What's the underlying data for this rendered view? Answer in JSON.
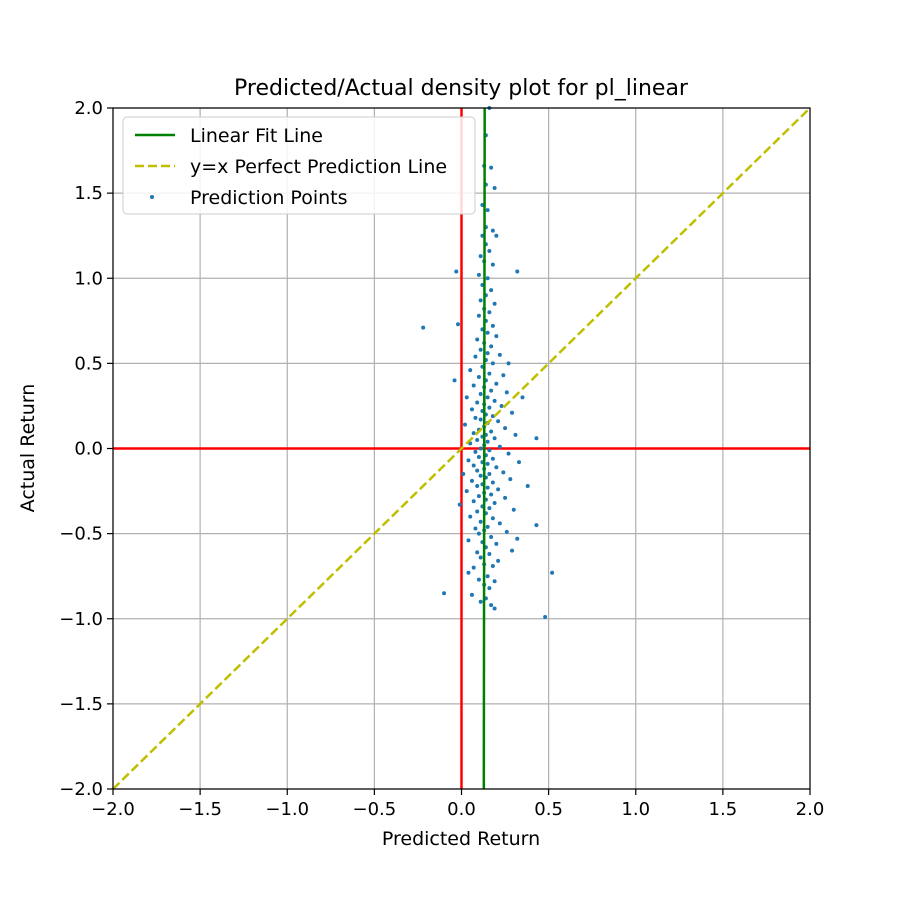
{
  "chart_data": {
    "type": "scatter",
    "title": "Predicted/Actual density plot for pl_linear",
    "xlabel": "Predicted Return",
    "ylabel": "Actual Return",
    "xlim": [
      -2.0,
      2.0
    ],
    "ylim": [
      -2.0,
      2.0
    ],
    "xticks": [
      -2.0,
      -1.5,
      -1.0,
      -0.5,
      0.0,
      0.5,
      1.0,
      1.5,
      2.0
    ],
    "yticks": [
      -2.0,
      -1.5,
      -1.0,
      -0.5,
      0.0,
      0.5,
      1.0,
      1.5,
      2.0
    ],
    "xtick_labels": [
      "−2.0",
      "−1.5",
      "−1.0",
      "−0.5",
      "0.0",
      "0.5",
      "1.0",
      "1.5",
      "2.0"
    ],
    "ytick_labels": [
      "−2.0",
      "−1.5",
      "−1.0",
      "−0.5",
      "0.0",
      "0.5",
      "1.0",
      "1.5",
      "2.0"
    ],
    "grid": true,
    "legend_position": "top-left",
    "colors": {
      "points": "#1f77b4",
      "fit_line": "#008000",
      "perfect_line": "#bfbf00",
      "zero_lines": "#ff0000",
      "grid": "#b0b0b0"
    },
    "lines": [
      {
        "name": "Linear Fit Line",
        "style": "solid",
        "x": [
          0.128,
          0.133
        ],
        "y": [
          -2.0,
          2.0
        ]
      },
      {
        "name": "y=x Perfect Prediction Line",
        "style": "dashed",
        "x": [
          -2.0,
          2.0
        ],
        "y": [
          -2.0,
          2.0
        ]
      }
    ],
    "reference_lines": [
      {
        "orientation": "vertical",
        "value": 0.0
      },
      {
        "orientation": "horizontal",
        "value": 0.0
      }
    ],
    "series": [
      {
        "name": "Prediction Points",
        "points": [
          [
            0.16,
            2.0
          ],
          [
            0.14,
            1.84
          ],
          [
            0.13,
            1.66
          ],
          [
            0.17,
            1.65
          ],
          [
            0.14,
            1.55
          ],
          [
            0.19,
            1.53
          ],
          [
            0.12,
            1.43
          ],
          [
            0.15,
            1.4
          ],
          [
            0.14,
            1.3
          ],
          [
            0.18,
            1.28
          ],
          [
            0.12,
            1.25
          ],
          [
            0.2,
            1.25
          ],
          [
            0.14,
            1.2
          ],
          [
            0.16,
            1.16
          ],
          [
            0.11,
            1.13
          ],
          [
            0.13,
            1.1
          ],
          [
            0.18,
            1.08
          ],
          [
            -0.03,
            1.04
          ],
          [
            0.32,
            1.04
          ],
          [
            0.1,
            1.02
          ],
          [
            0.15,
            1.0
          ],
          [
            0.12,
            0.96
          ],
          [
            0.17,
            0.93
          ],
          [
            0.14,
            0.9
          ],
          [
            0.11,
            0.87
          ],
          [
            0.19,
            0.85
          ],
          [
            0.13,
            0.82
          ],
          [
            0.16,
            0.8
          ],
          [
            0.1,
            0.78
          ],
          [
            0.14,
            0.75
          ],
          [
            -0.22,
            0.71
          ],
          [
            -0.02,
            0.73
          ],
          [
            0.18,
            0.72
          ],
          [
            0.12,
            0.7
          ],
          [
            0.15,
            0.68
          ],
          [
            0.2,
            0.66
          ],
          [
            0.09,
            0.64
          ],
          [
            0.13,
            0.62
          ],
          [
            0.17,
            0.6
          ],
          [
            0.11,
            0.58
          ],
          [
            0.15,
            0.56
          ],
          [
            0.22,
            0.55
          ],
          [
            0.08,
            0.54
          ],
          [
            0.14,
            0.52
          ],
          [
            0.27,
            0.5
          ],
          [
            0.18,
            0.5
          ],
          [
            0.12,
            0.48
          ],
          [
            0.05,
            0.46
          ],
          [
            0.16,
            0.44
          ],
          [
            0.24,
            0.43
          ],
          [
            0.1,
            0.42
          ],
          [
            0.14,
            0.4
          ],
          [
            -0.04,
            0.4
          ],
          [
            0.2,
            0.38
          ],
          [
            0.07,
            0.37
          ],
          [
            0.13,
            0.36
          ],
          [
            0.17,
            0.34
          ],
          [
            0.26,
            0.33
          ],
          [
            0.11,
            0.32
          ],
          [
            0.15,
            0.3
          ],
          [
            0.03,
            0.3
          ],
          [
            0.35,
            0.3
          ],
          [
            0.19,
            0.28
          ],
          [
            0.09,
            0.27
          ],
          [
            0.13,
            0.26
          ],
          [
            0.23,
            0.25
          ],
          [
            0.16,
            0.24
          ],
          [
            0.06,
            0.23
          ],
          [
            0.12,
            0.22
          ],
          [
            0.29,
            0.21
          ],
          [
            0.14,
            0.2
          ],
          [
            0.18,
            0.19
          ],
          [
            0.08,
            0.18
          ],
          [
            0.11,
            0.17
          ],
          [
            0.21,
            0.16
          ],
          [
            0.15,
            0.15
          ],
          [
            0.02,
            0.14
          ],
          [
            0.13,
            0.13
          ],
          [
            0.25,
            0.12
          ],
          [
            0.1,
            0.11
          ],
          [
            0.17,
            0.1
          ],
          [
            0.07,
            0.09
          ],
          [
            0.14,
            0.08
          ],
          [
            0.31,
            0.08
          ],
          [
            0.12,
            0.07
          ],
          [
            0.19,
            0.06
          ],
          [
            0.09,
            0.05
          ],
          [
            0.15,
            0.04
          ],
          [
            0.43,
            0.06
          ],
          [
            0.05,
            0.03
          ],
          [
            0.13,
            0.02
          ],
          [
            0.22,
            0.01
          ],
          [
            0.11,
            0.0
          ],
          [
            0.16,
            -0.01
          ],
          [
            0.08,
            -0.02
          ],
          [
            0.27,
            -0.03
          ],
          [
            0.14,
            -0.04
          ],
          [
            0.1,
            -0.05
          ],
          [
            0.18,
            -0.06
          ],
          [
            0.04,
            -0.07
          ],
          [
            0.12,
            -0.08
          ],
          [
            0.33,
            -0.08
          ],
          [
            0.15,
            -0.09
          ],
          [
            0.07,
            -0.1
          ],
          [
            0.2,
            -0.11
          ],
          [
            0.13,
            -0.12
          ],
          [
            0.09,
            -0.13
          ],
          [
            0.24,
            -0.14
          ],
          [
            0.16,
            -0.15
          ],
          [
            0.01,
            -0.15
          ],
          [
            0.11,
            -0.16
          ],
          [
            0.14,
            -0.17
          ],
          [
            0.28,
            -0.18
          ],
          [
            0.06,
            -0.19
          ],
          [
            0.18,
            -0.2
          ],
          [
            0.12,
            -0.21
          ],
          [
            0.09,
            -0.22
          ],
          [
            0.38,
            -0.22
          ],
          [
            0.15,
            -0.23
          ],
          [
            0.21,
            -0.24
          ],
          [
            0.03,
            -0.25
          ],
          [
            0.13,
            -0.26
          ],
          [
            0.17,
            -0.27
          ],
          [
            0.1,
            -0.28
          ],
          [
            0.25,
            -0.29
          ],
          [
            0.14,
            -0.3
          ],
          [
            0.07,
            -0.31
          ],
          [
            0.19,
            -0.32
          ],
          [
            -0.01,
            -0.33
          ],
          [
            0.12,
            -0.34
          ],
          [
            0.16,
            -0.35
          ],
          [
            0.3,
            -0.36
          ],
          [
            0.09,
            -0.37
          ],
          [
            0.14,
            -0.38
          ],
          [
            0.05,
            -0.4
          ],
          [
            0.18,
            -0.41
          ],
          [
            0.11,
            -0.43
          ],
          [
            0.22,
            -0.44
          ],
          [
            0.43,
            -0.45
          ],
          [
            0.15,
            -0.46
          ],
          [
            0.08,
            -0.47
          ],
          [
            0.13,
            -0.48
          ],
          [
            0.26,
            -0.49
          ],
          [
            0.1,
            -0.5
          ],
          [
            0.17,
            -0.52
          ],
          [
            0.32,
            -0.53
          ],
          [
            0.04,
            -0.54
          ],
          [
            0.12,
            -0.55
          ],
          [
            0.2,
            -0.56
          ],
          [
            0.14,
            -0.58
          ],
          [
            0.29,
            -0.6
          ],
          [
            0.09,
            -0.61
          ],
          [
            0.16,
            -0.62
          ],
          [
            0.11,
            -0.64
          ],
          [
            0.21,
            -0.66
          ],
          [
            0.13,
            -0.68
          ],
          [
            0.18,
            -0.69
          ],
          [
            0.07,
            -0.7
          ],
          [
            0.04,
            -0.73
          ],
          [
            0.52,
            -0.73
          ],
          [
            0.15,
            -0.75
          ],
          [
            0.1,
            -0.77
          ],
          [
            0.19,
            -0.78
          ],
          [
            0.13,
            -0.8
          ],
          [
            0.16,
            -0.82
          ],
          [
            -0.1,
            -0.85
          ],
          [
            0.06,
            -0.86
          ],
          [
            0.14,
            -0.88
          ],
          [
            0.11,
            -0.9
          ],
          [
            0.17,
            -0.92
          ],
          [
            0.19,
            -0.94
          ],
          [
            0.48,
            -0.99
          ]
        ]
      }
    ]
  }
}
